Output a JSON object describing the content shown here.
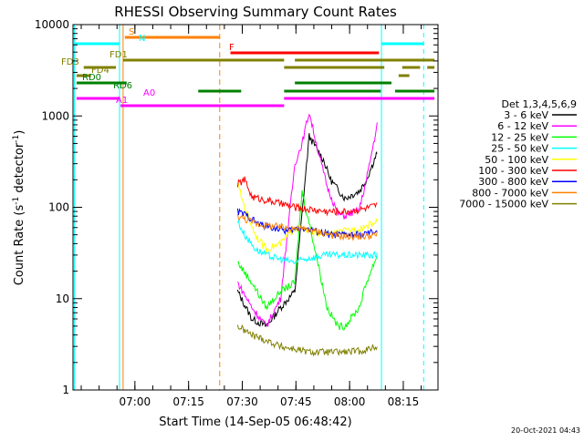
{
  "chart_data": {
    "type": "line",
    "title": "RHESSI Observing Summary Count Rates",
    "xlabel": "Start Time (14-Sep-05 06:48:42)",
    "ylabel": "Count Rate (s^-1 detector^-1)",
    "ylabel_main": "Count Rate (s",
    "ylabel_sup1": "-1",
    "ylabel_mid": " detector",
    "ylabel_sup2": "-1",
    "ylabel_end": ")",
    "yscale": "log",
    "ylim": [
      1,
      10000
    ],
    "xlim_minutes": [
      -6,
      96
    ],
    "x_tick_labels": [
      "07:00",
      "07:15",
      "07:30",
      "07:45",
      "08:00",
      "08:15"
    ],
    "x_tick_minutes": [
      11.3,
      26.3,
      41.3,
      56.3,
      71.3,
      86.3
    ],
    "y_tick_labels": [
      "1",
      "10",
      "100",
      "1000",
      "10000"
    ],
    "y_tick_values": [
      1,
      10,
      100,
      1000,
      10000
    ],
    "timestamp": "20-Oct-2021 04:43",
    "legend_title": "Det 1,3,4,5,6,9",
    "series": [
      {
        "name": "3 - 6 keV",
        "color": "#000000",
        "points": [
          [
            40,
            12
          ],
          [
            44,
            6
          ],
          [
            48,
            5
          ],
          [
            52,
            8
          ],
          [
            56,
            12
          ],
          [
            60,
            600
          ],
          [
            64,
            330
          ],
          [
            66,
            200
          ],
          [
            70,
            125
          ],
          [
            74,
            150
          ],
          [
            76,
            200
          ],
          [
            79,
            400
          ]
        ]
      },
      {
        "name": "6 - 12 keV",
        "color": "#ff00ff",
        "points": [
          [
            40,
            15
          ],
          [
            44,
            8
          ],
          [
            48,
            5
          ],
          [
            52,
            10
          ],
          [
            56,
            300
          ],
          [
            58,
            500
          ],
          [
            60,
            1100
          ],
          [
            62,
            500
          ],
          [
            65,
            170
          ],
          [
            68,
            85
          ],
          [
            70,
            80
          ],
          [
            74,
            95
          ],
          [
            76,
            200
          ],
          [
            79,
            800
          ]
        ]
      },
      {
        "name": "12 - 25 keV",
        "color": "#00ff00",
        "points": [
          [
            40,
            25
          ],
          [
            44,
            15
          ],
          [
            48,
            8
          ],
          [
            52,
            12
          ],
          [
            56,
            15
          ],
          [
            58,
            150
          ],
          [
            62,
            30
          ],
          [
            65,
            8
          ],
          [
            68,
            5
          ],
          [
            70,
            5
          ],
          [
            74,
            8
          ],
          [
            76,
            15
          ],
          [
            79,
            30
          ]
        ]
      },
      {
        "name": "25 - 50 keV",
        "color": "#00ffff",
        "points": [
          [
            40,
            70
          ],
          [
            42,
            50
          ],
          [
            45,
            35
          ],
          [
            48,
            30
          ],
          [
            52,
            27
          ],
          [
            56,
            25
          ],
          [
            60,
            28
          ],
          [
            65,
            30
          ],
          [
            70,
            30
          ],
          [
            75,
            30
          ],
          [
            79,
            30
          ]
        ]
      },
      {
        "name": "50 - 100 keV",
        "color": "#ffff00",
        "points": [
          [
            40,
            180
          ],
          [
            42,
            100
          ],
          [
            45,
            50
          ],
          [
            48,
            35
          ],
          [
            52,
            40
          ],
          [
            56,
            60
          ],
          [
            60,
            55
          ],
          [
            65,
            50
          ],
          [
            70,
            55
          ],
          [
            75,
            60
          ],
          [
            79,
            70
          ]
        ]
      },
      {
        "name": "100 - 300 keV",
        "color": "#ff0000",
        "points": [
          [
            40,
            180
          ],
          [
            42,
            200
          ],
          [
            44,
            130
          ],
          [
            48,
            120
          ],
          [
            52,
            110
          ],
          [
            56,
            100
          ],
          [
            60,
            95
          ],
          [
            65,
            90
          ],
          [
            70,
            90
          ],
          [
            75,
            95
          ],
          [
            79,
            105
          ]
        ]
      },
      {
        "name": "300 - 800 keV",
        "color": "#0000ff",
        "points": [
          [
            40,
            90
          ],
          [
            43,
            80
          ],
          [
            46,
            65
          ],
          [
            50,
            60
          ],
          [
            54,
            55
          ],
          [
            58,
            60
          ],
          [
            62,
            55
          ],
          [
            66,
            50
          ],
          [
            70,
            50
          ],
          [
            75,
            50
          ],
          [
            79,
            55
          ]
        ]
      },
      {
        "name": "800 - 7000 keV",
        "color": "#ff8000",
        "points": [
          [
            40,
            80
          ],
          [
            43,
            72
          ],
          [
            46,
            65
          ],
          [
            50,
            62
          ],
          [
            54,
            60
          ],
          [
            58,
            58
          ],
          [
            62,
            55
          ],
          [
            66,
            50
          ],
          [
            70,
            48
          ],
          [
            75,
            48
          ],
          [
            79,
            50
          ]
        ]
      },
      {
        "name": "7000 - 15000 keV",
        "color": "#808000",
        "points": [
          [
            40,
            5
          ],
          [
            44,
            4
          ],
          [
            48,
            3.5
          ],
          [
            52,
            3
          ],
          [
            56,
            2.8
          ],
          [
            60,
            2.6
          ],
          [
            65,
            2.6
          ],
          [
            70,
            2.6
          ],
          [
            75,
            2.7
          ],
          [
            79,
            3
          ]
        ]
      }
    ],
    "flag_labels": [
      {
        "label": "S",
        "color": "#ff8000"
      },
      {
        "label": "N",
        "color": "#00ffff"
      },
      {
        "label": "F",
        "color": "#ff0000"
      },
      {
        "label": "FD1",
        "color": "#808000"
      },
      {
        "label": "FD3",
        "color": "#808000"
      },
      {
        "label": "FD4",
        "color": "#808000"
      },
      {
        "label": "RD0",
        "color": "#008000"
      },
      {
        "label": "RD6",
        "color": "#008000"
      },
      {
        "label": "A0",
        "color": "#ff00ff"
      },
      {
        "label": "A1",
        "color": "#ff00ff"
      }
    ]
  }
}
